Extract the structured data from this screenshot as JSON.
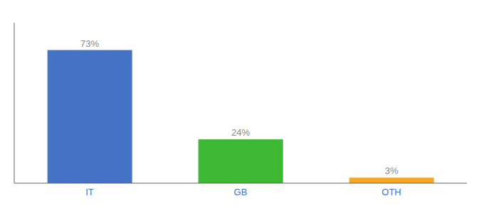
{
  "chart_data": {
    "type": "bar",
    "categories": [
      "IT",
      "GB",
      "OTH"
    ],
    "values": [
      73,
      24,
      3
    ],
    "value_labels": [
      "73%",
      "24%",
      "3%"
    ],
    "colors": [
      "#4472c4",
      "#3db832",
      "#f5a623"
    ],
    "ylim": [
      0,
      88
    ],
    "data_labels": true,
    "tick_labels": "x",
    "grid": false
  }
}
